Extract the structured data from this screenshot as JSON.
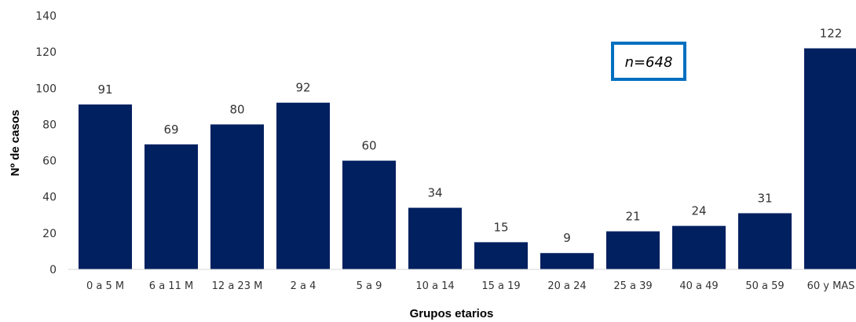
{
  "chart_data": {
    "type": "bar",
    "categories": [
      "0 a 5 M",
      "6 a 11 M",
      "12 a 23 M",
      "2 a 4",
      "5 a 9",
      "10 a 14",
      "15 a 19",
      "20 a 24",
      "25 a 39",
      "40 a 49",
      "50 a 59",
      "60 y MAS"
    ],
    "values": [
      91,
      69,
      80,
      92,
      60,
      34,
      15,
      9,
      21,
      24,
      31,
      122
    ],
    "xlabel": "Grupos etarios",
    "ylabel": "Nº de casos",
    "ylim": [
      0,
      140
    ],
    "yticks": [
      0,
      20,
      40,
      60,
      80,
      100,
      120,
      140
    ],
    "grid": false,
    "annotation": "n=648",
    "colors": {
      "bar": "#002060",
      "annotation_border": "#0070C0"
    }
  }
}
